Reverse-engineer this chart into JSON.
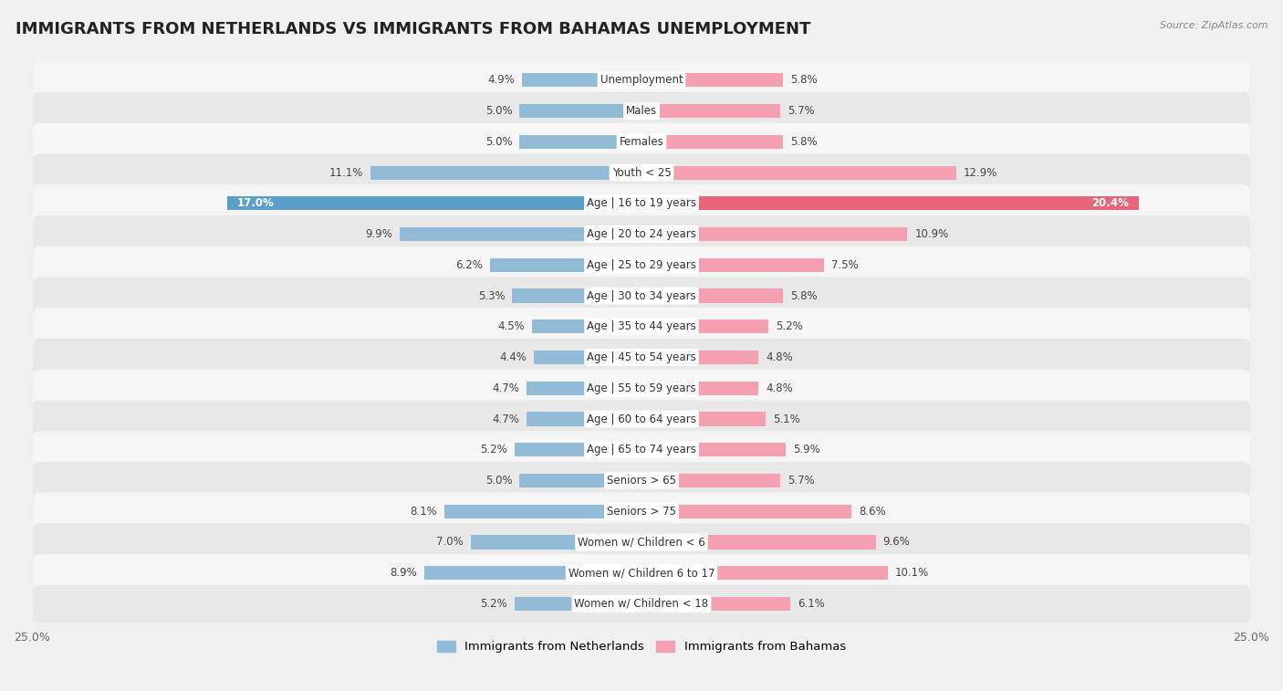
{
  "title": "IMMIGRANTS FROM NETHERLANDS VS IMMIGRANTS FROM BAHAMAS UNEMPLOYMENT",
  "source": "Source: ZipAtlas.com",
  "categories": [
    "Unemployment",
    "Males",
    "Females",
    "Youth < 25",
    "Age | 16 to 19 years",
    "Age | 20 to 24 years",
    "Age | 25 to 29 years",
    "Age | 30 to 34 years",
    "Age | 35 to 44 years",
    "Age | 45 to 54 years",
    "Age | 55 to 59 years",
    "Age | 60 to 64 years",
    "Age | 65 to 74 years",
    "Seniors > 65",
    "Seniors > 75",
    "Women w/ Children < 6",
    "Women w/ Children 6 to 17",
    "Women w/ Children < 18"
  ],
  "netherlands_values": [
    4.9,
    5.0,
    5.0,
    11.1,
    17.0,
    9.9,
    6.2,
    5.3,
    4.5,
    4.4,
    4.7,
    4.7,
    5.2,
    5.0,
    8.1,
    7.0,
    8.9,
    5.2
  ],
  "bahamas_values": [
    5.8,
    5.7,
    5.8,
    12.9,
    20.4,
    10.9,
    7.5,
    5.8,
    5.2,
    4.8,
    4.8,
    5.1,
    5.9,
    5.7,
    8.6,
    9.6,
    10.1,
    6.1
  ],
  "netherlands_color": "#92bcd6",
  "bahamas_color": "#f4a0b0",
  "netherlands_highlight_color": "#5b9ec9",
  "bahamas_highlight_color": "#e8647a",
  "row_color_odd": "#f5f5f5",
  "row_color_even": "#e8e8e8",
  "background_color": "#f0f0f0",
  "xlim": 25.0,
  "center_label_bg": "#ffffff",
  "legend_netherlands": "Immigrants from Netherlands",
  "legend_bahamas": "Immigrants from Bahamas",
  "title_fontsize": 13,
  "label_fontsize": 8.5,
  "value_fontsize": 8.5
}
